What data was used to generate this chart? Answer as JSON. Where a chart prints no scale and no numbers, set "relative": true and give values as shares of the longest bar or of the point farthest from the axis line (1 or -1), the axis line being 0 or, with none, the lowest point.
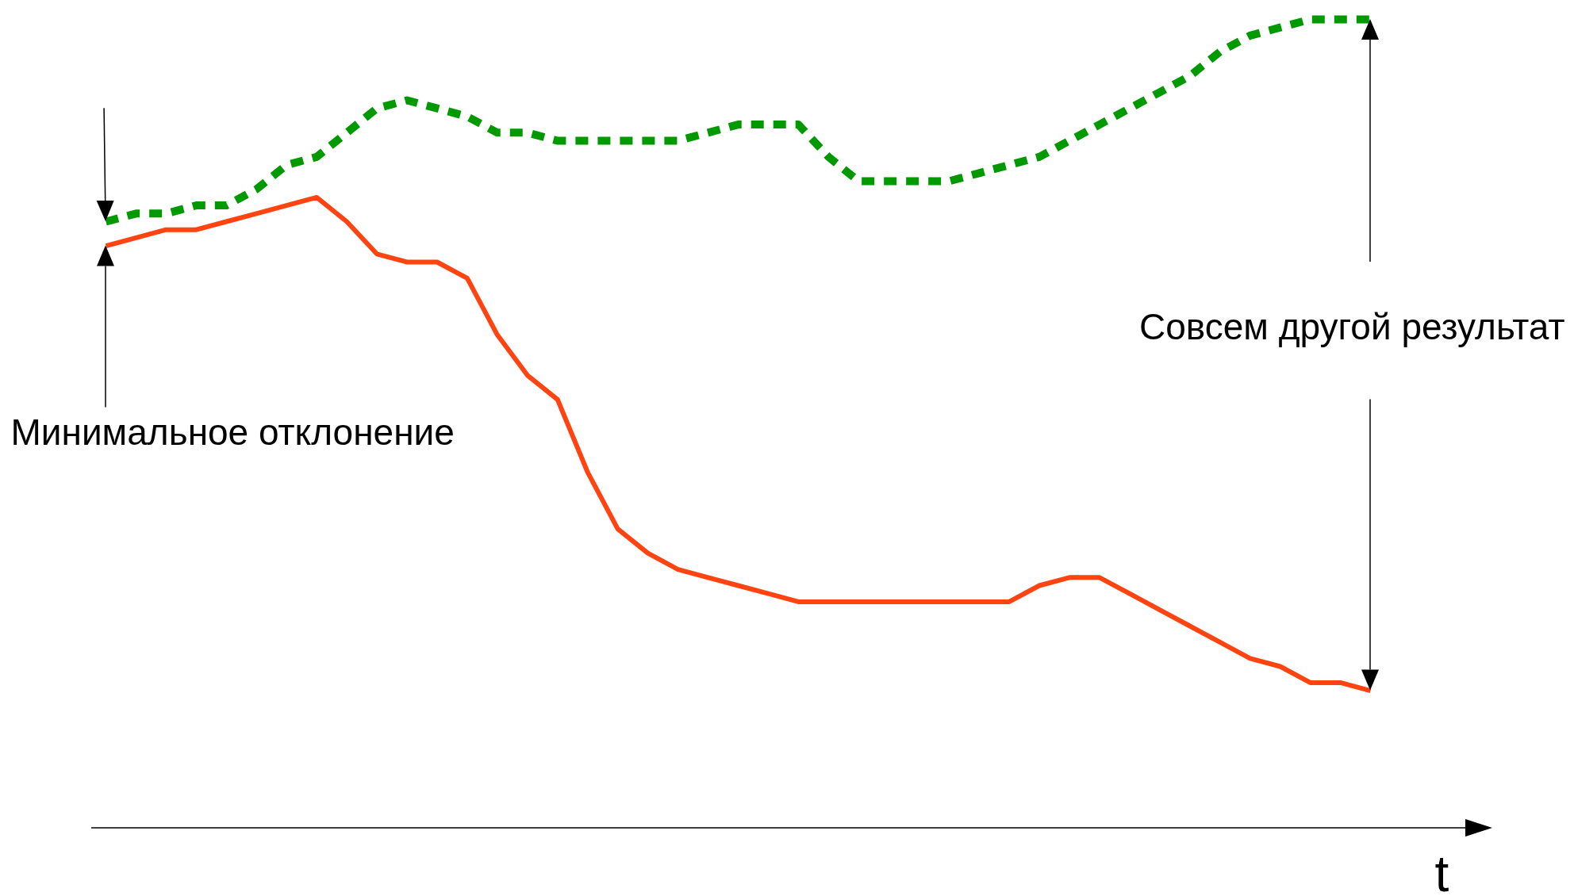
{
  "chart_data": {
    "type": "line",
    "relative": true,
    "xlabel": "t",
    "categories": [
      null,
      null,
      null,
      null,
      null,
      null,
      null,
      null,
      null,
      null,
      null,
      null,
      null,
      null,
      null,
      null,
      null,
      null,
      null,
      null,
      null,
      null,
      null,
      null,
      null,
      null,
      null,
      null,
      null,
      null,
      null,
      null,
      null,
      null,
      null,
      null,
      null,
      null,
      null,
      null,
      null,
      null,
      null
    ],
    "series": [
      {
        "color": "#009900",
        "line_style": "dashed",
        "values": [
          0.75,
          0.76,
          0.76,
          0.77,
          0.77,
          0.79,
          0.82,
          0.83,
          0.86,
          0.89,
          0.9,
          0.89,
          0.88,
          0.86,
          0.86,
          0.85,
          0.85,
          0.85,
          0.85,
          0.85,
          0.86,
          0.87,
          0.87,
          0.87,
          0.83,
          0.8,
          0.8,
          0.8,
          0.8,
          0.81,
          0.82,
          0.83,
          0.85,
          0.87,
          0.89,
          0.91,
          0.93,
          0.96,
          0.98,
          0.99,
          1.0,
          1.0,
          1.0
        ]
      },
      {
        "color": "#ff4411",
        "line_style": "solid",
        "values": [
          0.72,
          0.73,
          0.74,
          0.74,
          0.75,
          0.76,
          0.77,
          0.78,
          0.75,
          0.71,
          0.7,
          0.7,
          0.68,
          0.61,
          0.56,
          0.53,
          0.44,
          0.37,
          0.34,
          0.32,
          0.31,
          0.3,
          0.29,
          0.28,
          0.28,
          0.28,
          0.28,
          0.28,
          0.28,
          0.28,
          0.28,
          0.3,
          0.31,
          0.31,
          0.29,
          0.27,
          0.25,
          0.23,
          0.21,
          0.2,
          0.18,
          0.18,
          0.17
        ]
      }
    ],
    "annotations": [
      "Минимальное отклонение",
      "Совсем другой результат"
    ]
  }
}
